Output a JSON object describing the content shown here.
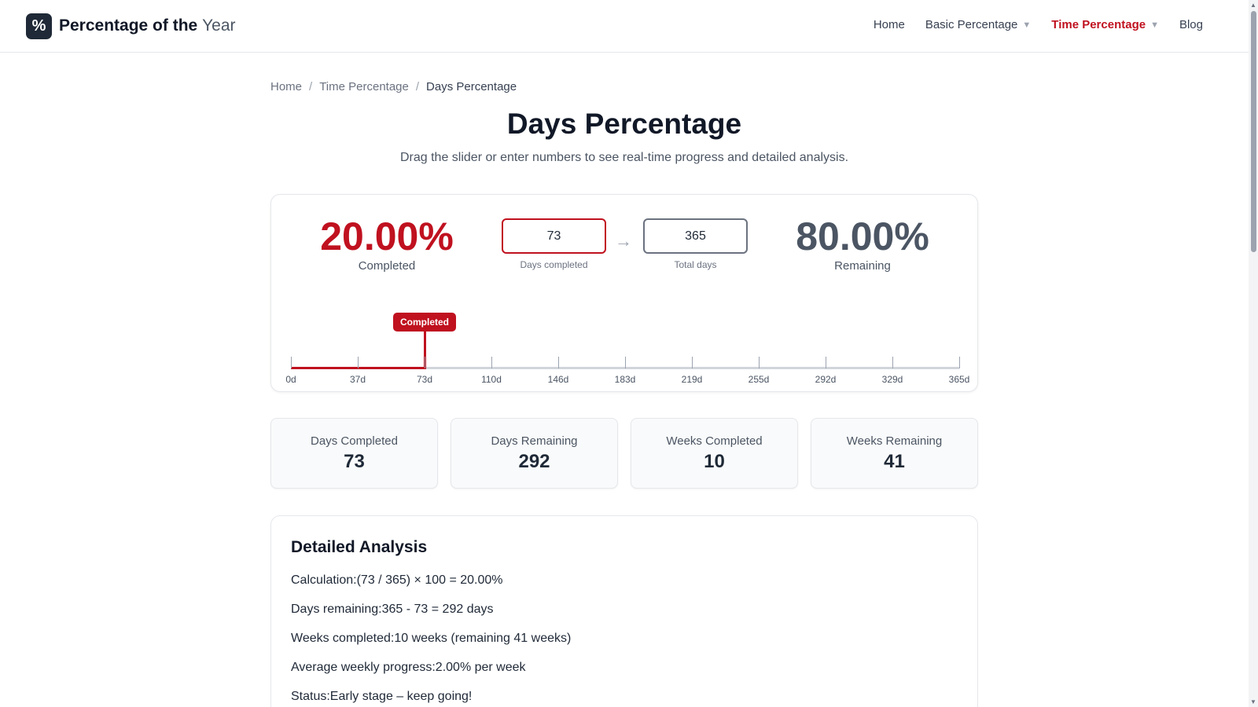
{
  "header": {
    "logo_symbol": "%",
    "brand_main": "Percentage of the ",
    "brand_accent": "Year",
    "nav": [
      {
        "label": "Home",
        "dropdown": false,
        "active": false
      },
      {
        "label": "Basic Percentage",
        "dropdown": true,
        "active": false
      },
      {
        "label": "Time Percentage",
        "dropdown": true,
        "active": true
      },
      {
        "label": "Blog",
        "dropdown": false,
        "active": false
      }
    ],
    "caret": "▼"
  },
  "breadcrumb": [
    "Home",
    "Time Percentage",
    "Days Percentage"
  ],
  "breadcrumb_sep": "/",
  "page": {
    "title": "Days Percentage",
    "subtitle": "Drag the slider or enter numbers to see real-time progress and detailed analysis."
  },
  "calculator": {
    "completed_pct": "20.00%",
    "completed_label": "Completed",
    "remaining_pct": "80.00%",
    "remaining_label": "Remaining",
    "days_completed_value": "73",
    "days_completed_label": "Days completed",
    "total_days_value": "365",
    "total_days_label": "Total days",
    "arrow": "→"
  },
  "slider": {
    "value": 73,
    "max": 365,
    "tooltip": "Completed",
    "ticks": [
      "0d",
      "37d",
      "73d",
      "110d",
      "146d",
      "183d",
      "219d",
      "255d",
      "292d",
      "329d",
      "365d"
    ]
  },
  "stats": [
    {
      "label": "Days Completed",
      "value": "73"
    },
    {
      "label": "Days Remaining",
      "value": "292"
    },
    {
      "label": "Weeks Completed",
      "value": "10"
    },
    {
      "label": "Weeks Remaining",
      "value": "41"
    }
  ],
  "analysis": {
    "title": "Detailed Analysis",
    "lines": [
      "Calculation:(73 / 365) × 100 = 20.00%",
      "Days remaining:365 - 73 = 292 days",
      "Weeks completed:10 weeks (remaining 41 weeks)",
      "Average weekly progress:2.00% per week",
      "Status:Early stage – keep going!"
    ]
  },
  "colors": {
    "accent": "#c0111f",
    "dark": "#1f2937",
    "muted": "#4b5563"
  }
}
